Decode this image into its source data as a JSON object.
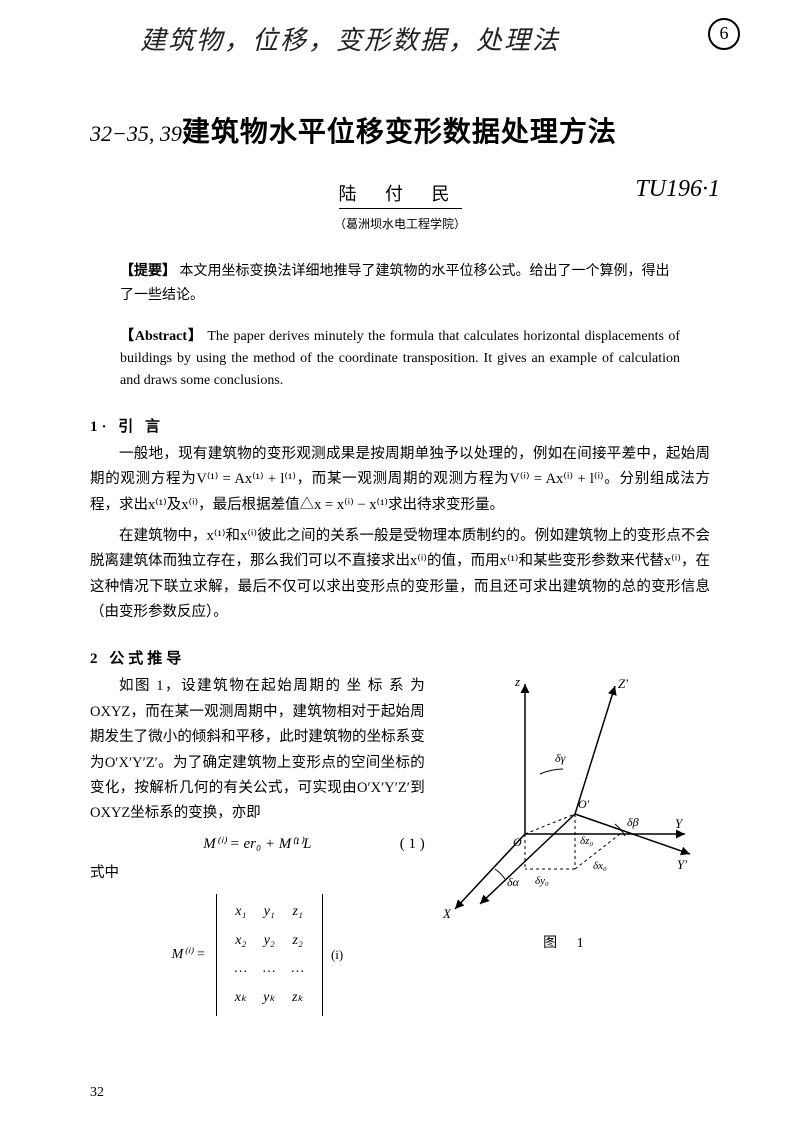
{
  "handwriting": {
    "top": "建筑物，位移，变形数据，处理法",
    "page_circle": "6",
    "left_margin": "32−35, 39",
    "classification": "TU196·1"
  },
  "title": "建筑物水平位移变形数据处理方法",
  "author": "陆 付 民",
  "affiliation": "（葛洲坝水电工程学院）",
  "abstract_cn": {
    "label": "【提要】",
    "text": "本文用坐标变换法详细地推导了建筑物的水平位移公式。给出了一个算例，得出了一些结论。"
  },
  "abstract_en": {
    "label": "【Abstract】",
    "text": "The paper derives minutely the formula that calculates horizontal displacements of buildings by using the method of the coordinate transposition. It gives an example of calculation and draws some conclusions."
  },
  "sections": {
    "s1": "1· 引  言",
    "s2": "2  公式推导"
  },
  "paragraphs": {
    "p1": "一般地，现有建筑物的变形观测成果是按周期单独予以处理的，例如在间接平差中，起始周期的观测方程为V⁽¹⁾ = Ax⁽¹⁾ + l⁽¹⁾，而某一观测周期的观测方程为V⁽ⁱ⁾ = Ax⁽ⁱ⁾ + l⁽ⁱ⁾。分别组成法方程，求出x⁽¹⁾及x⁽ⁱ⁾，最后根据差值△x = x⁽ⁱ⁾ − x⁽¹⁾求出待求变形量。",
    "p2": "在建筑物中，x⁽¹⁾和x⁽ⁱ⁾彼此之间的关系一般是受物理本质制约的。例如建筑物上的变形点不会脱离建筑体而独立存在，那么我们可以不直接求出x⁽ⁱ⁾的值，而用x⁽¹⁾和某些变形参数来代替x⁽ⁱ⁾，在这种情况下联立求解，最后不仅可以求出变形点的变形量，而且还可求出建筑物的总的变形信息（由变形参数反应）。",
    "p3a": "如图 1，设建筑物在起始周期的 坐 标 系 为 OXYZ，而在某一观测周期中，建筑物相对于起始周期发生了微小的倾斜和平移，此时建筑物的坐标系变为O′X′Y′Z′。为了确定建筑物上变形点的空间坐标的变化，按解析几何的有关公式，可实现由O′X′Y′Z′到OXYZ坐标系的变换，亦即",
    "formula1": "M⁽ⁱ⁾ = er₀ + M⁽¹⁾L",
    "formula1_num": "( 1 )",
    "p3b": "式中"
  },
  "matrix": {
    "label": "M⁽ⁱ⁾ =",
    "rows": [
      [
        "x₁",
        "y₁",
        "z₁"
      ],
      [
        "x₂",
        "y₂",
        "z₂"
      ],
      [
        "…",
        "…",
        "…"
      ],
      [
        "xₖ",
        "yₖ",
        "zₖ"
      ]
    ],
    "note": "(i)"
  },
  "figure": {
    "caption": "图  1",
    "axes": {
      "z": "z",
      "zp": "Z′",
      "y": "Y",
      "yp": "Y′",
      "x": "X",
      "o": "O",
      "op": "O′"
    },
    "deltas": {
      "dg": "δγ",
      "db": "δβ",
      "da": "δα",
      "dz0": "δz₀",
      "dx0": "δx₀",
      "dy0": "δy₀"
    },
    "stroke": "#000000",
    "stroke_width": 1.5
  },
  "page_number": "32"
}
